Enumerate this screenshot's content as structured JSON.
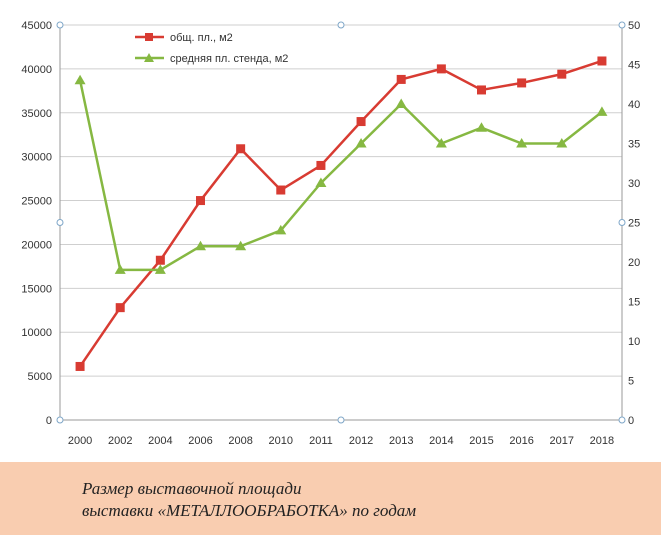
{
  "chart_data": {
    "type": "line",
    "title": "",
    "categories": [
      "2000",
      "2002",
      "2004",
      "2006",
      "2008",
      "2010",
      "2011",
      "2012",
      "2013",
      "2014",
      "2015",
      "2016",
      "2017",
      "2018"
    ],
    "y_left": {
      "ylim": [
        0,
        45000
      ],
      "ticks": [
        0,
        5000,
        10000,
        15000,
        20000,
        25000,
        30000,
        35000,
        40000,
        45000
      ]
    },
    "y_right": {
      "ylim": [
        0,
        50
      ],
      "ticks": [
        0,
        5,
        10,
        15,
        20,
        25,
        30,
        35,
        40,
        45,
        50
      ]
    },
    "series": [
      {
        "name": "общ. пл., м2",
        "axis": "left",
        "color": "#d83b32",
        "marker": "square",
        "values": [
          6100,
          12800,
          18200,
          25000,
          30900,
          26200,
          29000,
          34000,
          38800,
          40000,
          37600,
          38400,
          39400,
          40900
        ]
      },
      {
        "name": "средняя пл. стенда, м2",
        "axis": "right",
        "color": "#86b842",
        "marker": "triangle",
        "values": [
          43,
          19,
          19,
          22,
          22,
          24,
          30,
          35,
          40,
          35,
          37,
          35,
          35,
          39
        ]
      }
    ],
    "legend_position": "top-left",
    "grid": true
  },
  "caption": {
    "line1": "Размер выставочной площади",
    "line2": "выставки «МЕТАЛЛООБРАБОТКА»  по годам"
  }
}
